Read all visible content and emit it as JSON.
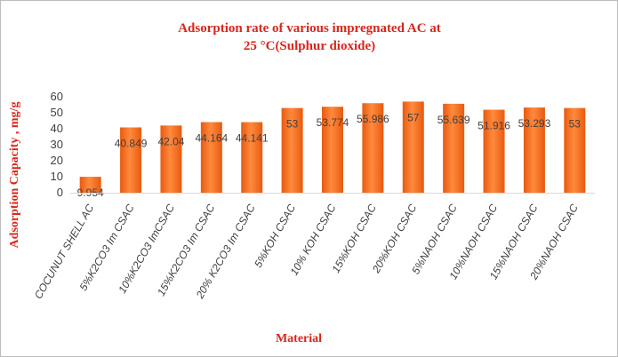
{
  "chart_data": {
    "type": "bar",
    "title_lines": [
      "Adsorption rate of various impregnated AC at",
      "25 °C(Sulphur dioxide)"
    ],
    "xlabel": "Material",
    "ylabel": "Adsorption Capacity ,   mg/g",
    "ylim": [
      0,
      60
    ],
    "yticks": [
      "0",
      "10",
      "20",
      "30",
      "40",
      "50",
      "60"
    ],
    "categories": [
      "COCUNUT SHELL AC",
      "5%K2CO3 Im CSAC",
      "10%K2CO3 ImCSAC",
      "15%K2CO3 Im CSAC",
      "20% K2CO3 Im CSAC",
      "5%KOH CSAC",
      "10% KOH CSAC",
      "15%KOH CSAC",
      "20%KOH CSAC",
      "5%NAOH CSAC",
      "10%NAOH CSAC",
      "15%NAOH CSAC",
      "20%NAOH CSAC"
    ],
    "values": [
      9.954,
      40.849,
      42.04,
      44.164,
      44.141,
      53,
      53.774,
      55.986,
      57,
      55.639,
      51.916,
      53.293,
      53
    ],
    "value_labels": [
      "9.954",
      "40.849",
      "42.04",
      "44.164",
      "44.141",
      "53",
      "53.774",
      "55.986",
      "57",
      "55.639",
      "51.916",
      "53.293",
      "53"
    ],
    "grid": false,
    "legend": "none",
    "bar_color": "#f26b21"
  }
}
